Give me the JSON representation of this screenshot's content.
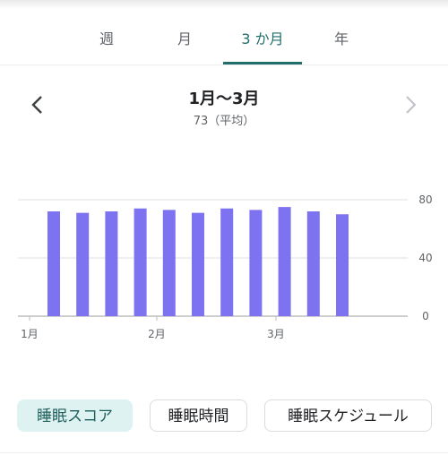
{
  "tabs": [
    {
      "label": "週"
    },
    {
      "label": "月"
    },
    {
      "label": "3 か月",
      "active": true
    },
    {
      "label": "年"
    }
  ],
  "period": {
    "title": "1月〜3月",
    "subtitle": "73（平均）"
  },
  "chips": [
    {
      "label": "睡眠スコア",
      "selected": true
    },
    {
      "label": "睡眠時間"
    },
    {
      "label": "睡眠スケジュール"
    }
  ],
  "colors": {
    "accent": "#1f6e6b",
    "bar": "#7d72f0",
    "chip_selected_bg": "#dff2f2"
  },
  "icons": {
    "prev": "chevron-left-icon",
    "next": "chevron-right-icon"
  },
  "chart_data": {
    "type": "bar",
    "title": "",
    "xlabel": "",
    "ylabel": "",
    "ylim": [
      0,
      85
    ],
    "y_ticks": [
      "0",
      "40",
      "80"
    ],
    "x_tick_labels": [
      "1月",
      "2月",
      "3月"
    ],
    "values": [
      72,
      71,
      72,
      74,
      73,
      71,
      74,
      73,
      75,
      72,
      70
    ],
    "grid": true
  }
}
